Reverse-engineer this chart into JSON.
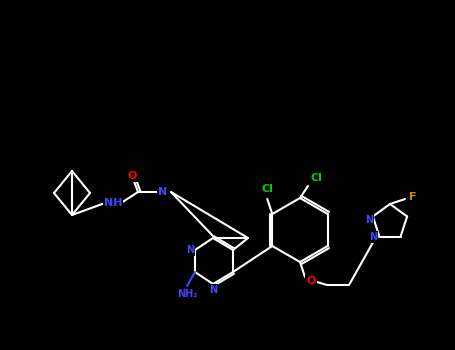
{
  "bg": "#000000",
  "bond_color": "#ffffff",
  "bond_lw": 1.5,
  "atom_colors": {
    "N": "#4444ff",
    "O": "#ff0000",
    "Cl": "#00cc00",
    "F": "#cc8800",
    "C": "#ffffff",
    "NH": "#4444ff",
    "NH2": "#4444ff"
  },
  "figsize": [
    4.55,
    3.5
  ],
  "dpi": 100
}
